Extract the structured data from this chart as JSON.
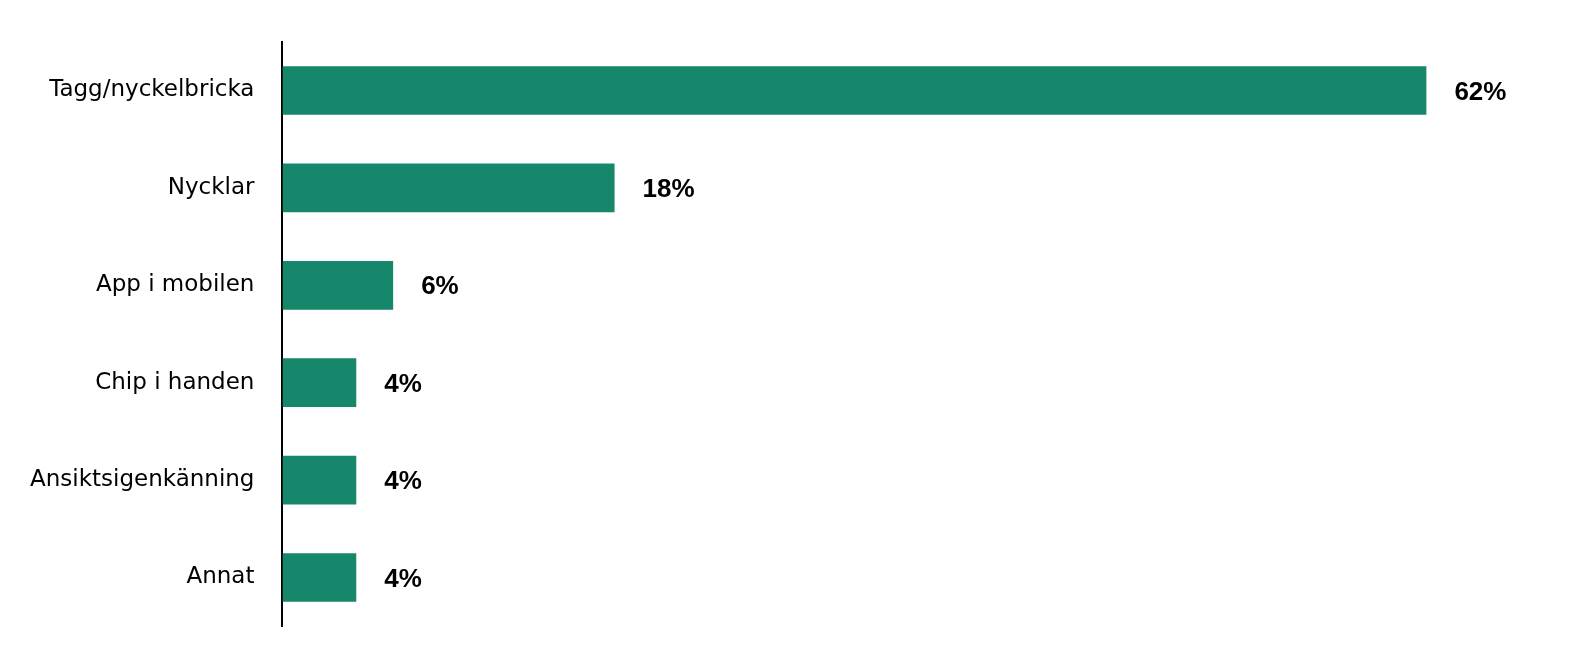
{
  "chart_data": {
    "type": "bar",
    "orientation": "horizontal",
    "categories": [
      "Tagg/nyckelbricka",
      "Nycklar",
      "App i mobilen",
      "Chip i handen",
      "Ansiktsigenkänning",
      "Annat"
    ],
    "values": [
      62,
      18,
      6,
      4,
      4,
      4
    ],
    "value_labels": [
      "62%",
      "18%",
      "6%",
      "4%",
      "4%",
      "4%"
    ],
    "color": "#17876b",
    "legend": false,
    "tick_labels": "y"
  }
}
